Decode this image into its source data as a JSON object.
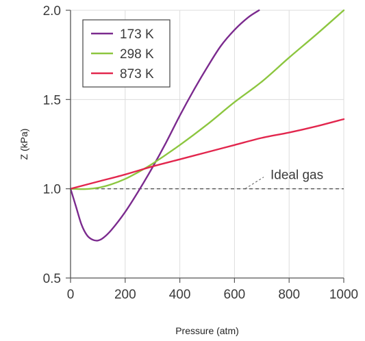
{
  "chart_data": {
    "type": "line",
    "title": "",
    "xlabel": "Pressure (atm)",
    "ylabel": "Z (kPa)",
    "xlim": [
      0,
      1000
    ],
    "ylim": [
      0.5,
      2.0
    ],
    "xticks": [
      0,
      200,
      400,
      600,
      800,
      1000
    ],
    "yticks": [
      0.5,
      1.0,
      1.5,
      2.0
    ],
    "xtick_labels": [
      "0",
      "200",
      "400",
      "600",
      "800",
      "1000"
    ],
    "ytick_labels": [
      "0.5",
      "1.0",
      "1.5",
      "2.0"
    ],
    "grid": true,
    "legend_position": "top-left",
    "series": [
      {
        "name": "173 K",
        "color": "#7b2a8e",
        "x": [
          0,
          20,
          40,
          60,
          80,
          100,
          120,
          150,
          200,
          250,
          300,
          350,
          400,
          450,
          500,
          550,
          600,
          650,
          690
        ],
        "values": [
          1.0,
          0.9,
          0.8,
          0.74,
          0.715,
          0.71,
          0.725,
          0.77,
          0.87,
          0.99,
          1.12,
          1.26,
          1.41,
          1.55,
          1.68,
          1.8,
          1.89,
          1.96,
          2.0
        ]
      },
      {
        "name": "298 K",
        "color": "#8cc63f",
        "x": [
          0,
          50,
          100,
          150,
          200,
          250,
          300,
          400,
          500,
          600,
          700,
          800,
          900,
          1000
        ],
        "values": [
          1.0,
          0.998,
          1.005,
          1.025,
          1.055,
          1.095,
          1.14,
          1.245,
          1.36,
          1.485,
          1.6,
          1.735,
          1.865,
          2.0
        ]
      },
      {
        "name": "873 K",
        "color": "#e2264d",
        "x": [
          0,
          100,
          200,
          300,
          400,
          500,
          600,
          700,
          800,
          900,
          1000
        ],
        "values": [
          1.0,
          1.04,
          1.08,
          1.125,
          1.165,
          1.205,
          1.245,
          1.285,
          1.315,
          1.35,
          1.39
        ]
      }
    ],
    "annotations": [
      {
        "text": "Ideal gas",
        "value": 1.0
      }
    ]
  }
}
